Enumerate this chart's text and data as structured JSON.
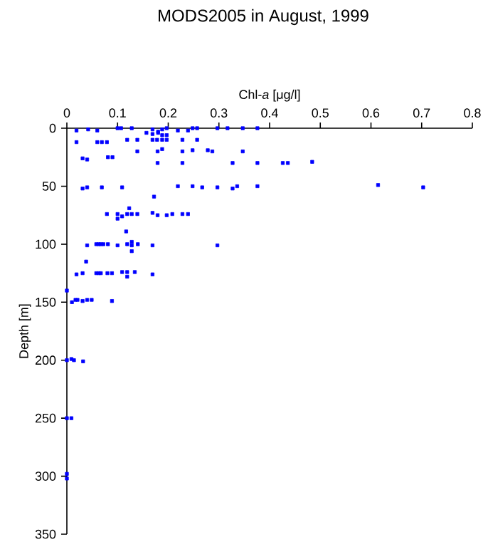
{
  "chart_data": {
    "type": "scatter",
    "title": "MODS2005 in August, 1999",
    "xlabel": "Chl-*a* [μg/l]",
    "ylabel": "Depth [m]",
    "xlim": [
      0,
      0.8
    ],
    "xticks": [
      0,
      0.1,
      0.2,
      0.3,
      0.4,
      0.5,
      0.6,
      0.7,
      0.8
    ],
    "ylim": [
      350,
      0
    ],
    "yticks": [
      0,
      50,
      100,
      150,
      200,
      250,
      300,
      350
    ],
    "marker": "square",
    "series": [
      {
        "color": "#0000ff",
        "x": [
          0.019,
          0.042,
          0.06,
          0.1,
          0.107,
          0.128,
          0.157,
          0.169,
          0.18,
          0.188,
          0.197,
          0.219,
          0.239,
          0.248,
          0.257,
          0.297,
          0.317,
          0.347,
          0.376,
          0.169,
          0.18,
          0.188,
          0.197,
          0.119,
          0.139,
          0.169,
          0.178,
          0.188,
          0.197,
          0.228,
          0.257,
          0.019,
          0.06,
          0.069,
          0.079,
          0.188,
          0.139,
          0.179,
          0.228,
          0.248,
          0.278,
          0.287,
          0.347,
          0.031,
          0.04,
          0.081,
          0.09,
          0.179,
          0.228,
          0.327,
          0.376,
          0.426,
          0.436,
          0.484,
          0.031,
          0.04,
          0.069,
          0.109,
          0.219,
          0.248,
          0.267,
          0.297,
          0.327,
          0.336,
          0.376,
          0.614,
          0.703,
          0.172,
          0.123,
          0.079,
          0.1,
          0.109,
          0.119,
          0.128,
          0.139,
          0.169,
          0.179,
          0.197,
          0.208,
          0.228,
          0.239,
          0.1,
          0.117,
          0.04,
          0.058,
          0.063,
          0.067,
          0.072,
          0.081,
          0.1,
          0.119,
          0.128,
          0.14,
          0.169,
          0.297,
          0.128,
          0.128,
          0.038,
          0.019,
          0.031,
          0.058,
          0.063,
          0.067,
          0.08,
          0.089,
          0.109,
          0.119,
          0.134,
          0.169,
          0.119,
          0,
          0.01,
          0.017,
          0.021,
          0.031,
          0.04,
          0.049,
          0.089,
          0,
          0.009,
          0.014,
          0.032,
          0,
          0.009,
          0,
          0
        ],
        "values": [
          2,
          1,
          2,
          0,
          0,
          0,
          4,
          1,
          3,
          1,
          0,
          2,
          2,
          0,
          0,
          0,
          0,
          0,
          0,
          5,
          4,
          6,
          6,
          10,
          10,
          10,
          10,
          10,
          10,
          10,
          10,
          12,
          12,
          12,
          12,
          18,
          20,
          20,
          20,
          19,
          19,
          20,
          20,
          26,
          27,
          25,
          25,
          30,
          30,
          30,
          30,
          30,
          30,
          29,
          52,
          51,
          51,
          51,
          50,
          50,
          51,
          51,
          52,
          50,
          50,
          49,
          51,
          59,
          69,
          74,
          74,
          76,
          74,
          74,
          74,
          73,
          75,
          75,
          74,
          74,
          74,
          78,
          89,
          101,
          100,
          100,
          100,
          100,
          100,
          101,
          100,
          101,
          100,
          101,
          101,
          98,
          106,
          115,
          126,
          125,
          125,
          125,
          125,
          125,
          125,
          124,
          124,
          124,
          126,
          128,
          140,
          150,
          148,
          148,
          149,
          148,
          148,
          149,
          200,
          199,
          200,
          201,
          250,
          250,
          298,
          302
        ]
      }
    ]
  }
}
